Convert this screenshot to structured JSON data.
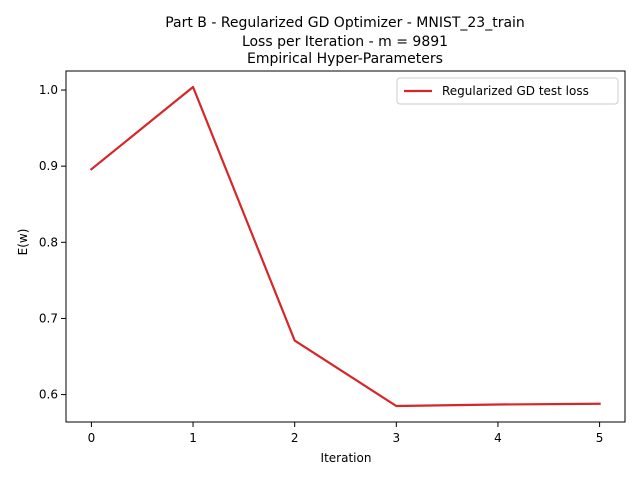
{
  "chart_data": {
    "type": "line",
    "title_lines": [
      "Part B - Regularized GD Optimizer - MNIST_23_train",
      "Loss per Iteration - m = 9891",
      "Empirical Hyper-Parameters"
    ],
    "xlabel": "Iteration",
    "ylabel": "E(w)",
    "x": [
      0,
      1,
      2,
      3,
      4,
      5
    ],
    "series": [
      {
        "name": "Regularized GD test loss",
        "values": [
          0.896,
          1.004,
          0.671,
          0.585,
          0.587,
          0.588
        ],
        "color": "#d62728"
      }
    ],
    "xlim": [
      -0.25,
      5.25
    ],
    "ylim": [
      0.564,
      1.025
    ],
    "xticks": [
      "0",
      "1",
      "2",
      "3",
      "4",
      "5"
    ],
    "yticks": [
      "0.6",
      "0.7",
      "0.8",
      "0.9",
      "1.0"
    ],
    "grid": false,
    "legend_placement": "top-right"
  }
}
